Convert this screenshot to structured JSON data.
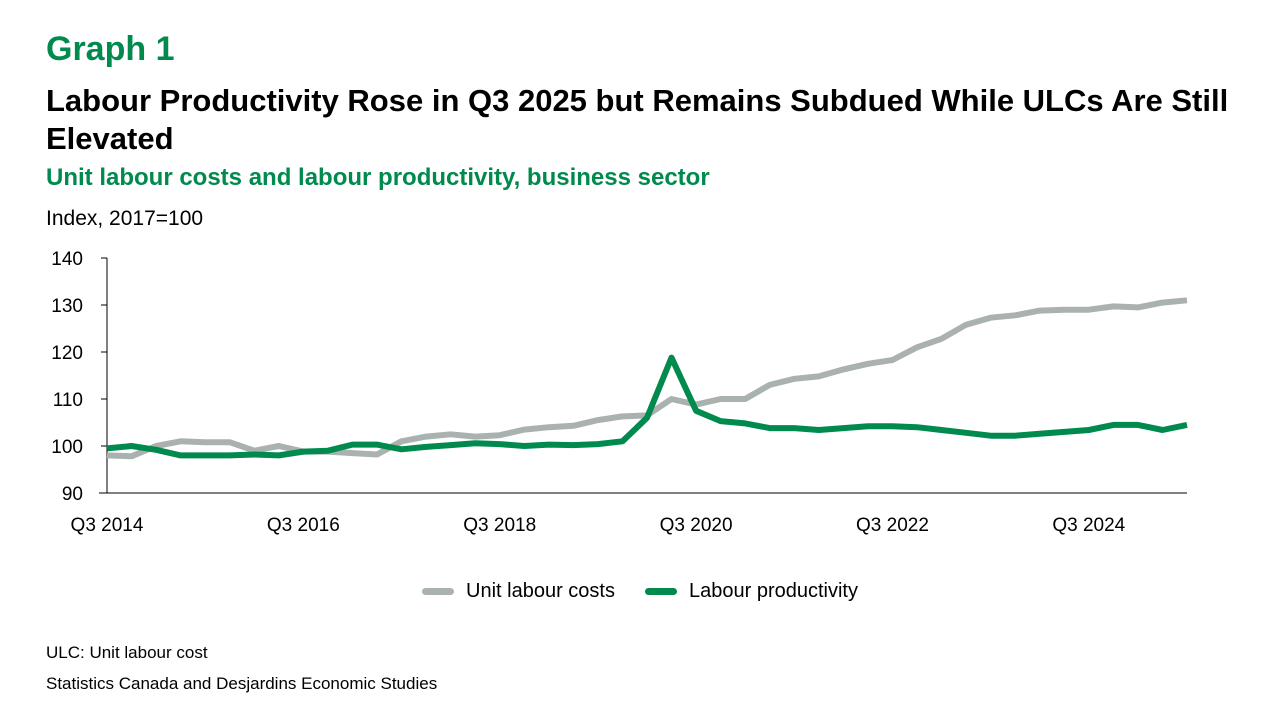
{
  "header": {
    "graph_label": "Graph 1",
    "title": "Labour Productivity Rose in Q3 2025 but Remains Subdued While ULCs Are Still Elevated",
    "subtitle": "Unit labour costs and labour productivity, business sector",
    "unit": "Index, 2017=100"
  },
  "footer": {
    "note": "ULC: Unit labour cost",
    "source": "Statistics Canada and Desjardins Economic Studies"
  },
  "colors": {
    "ulc": "#aab2af",
    "lp": "#008a4d",
    "accent": "#008a4d"
  },
  "chart_data": {
    "type": "line",
    "title": "Unit labour costs and labour productivity, business sector",
    "ylabel": "Index, 2017=100",
    "xlabel": "",
    "ylim": [
      90,
      140
    ],
    "yticks": [
      "90",
      "100",
      "110",
      "120",
      "130",
      "140"
    ],
    "x_start": "Q3 2014",
    "x_end": "Q3 2025",
    "n_points": 45,
    "xtick_labels": [
      {
        "label": "Q3 2014",
        "index": 0
      },
      {
        "label": "Q3 2016",
        "index": 8
      },
      {
        "label": "Q3 2018",
        "index": 16
      },
      {
        "label": "Q3 2020",
        "index": 24
      },
      {
        "label": "Q3 2022",
        "index": 32
      },
      {
        "label": "Q3 2024",
        "index": 40
      }
    ],
    "grid": false,
    "legend_position": "bottom",
    "series": [
      {
        "name": "Unit labour costs",
        "color": "#aab2af",
        "values": [
          98,
          97.8,
          100,
          101,
          100.8,
          100.8,
          99,
          100,
          98.8,
          98.8,
          98.5,
          98.2,
          101,
          102,
          102.5,
          102,
          102.3,
          103.5,
          104,
          104.3,
          105.5,
          106.3,
          106.5,
          110,
          108.8,
          110,
          110,
          113,
          114.3,
          114.8,
          116.3,
          117.5,
          118.3,
          121,
          122.8,
          125.8,
          127.3,
          127.8,
          128.8,
          129,
          129,
          129.7,
          129.5,
          130.5,
          131
        ]
      },
      {
        "name": "Labour productivity",
        "color": "#008a4d",
        "values": [
          99.5,
          100,
          99.2,
          98,
          98,
          98,
          98.2,
          98,
          98.8,
          99,
          100.3,
          100.3,
          99.3,
          99.8,
          100.2,
          100.6,
          100.4,
          100,
          100.3,
          100.2,
          100.4,
          101,
          106,
          118.8,
          107.5,
          105.3,
          104.8,
          103.8,
          103.8,
          103.4,
          103.8,
          104.2,
          104.2,
          104,
          103.4,
          102.8,
          102.2,
          102.2,
          102.6,
          103,
          103.4,
          104.5,
          104.5,
          103.4,
          104.5
        ]
      }
    ]
  }
}
